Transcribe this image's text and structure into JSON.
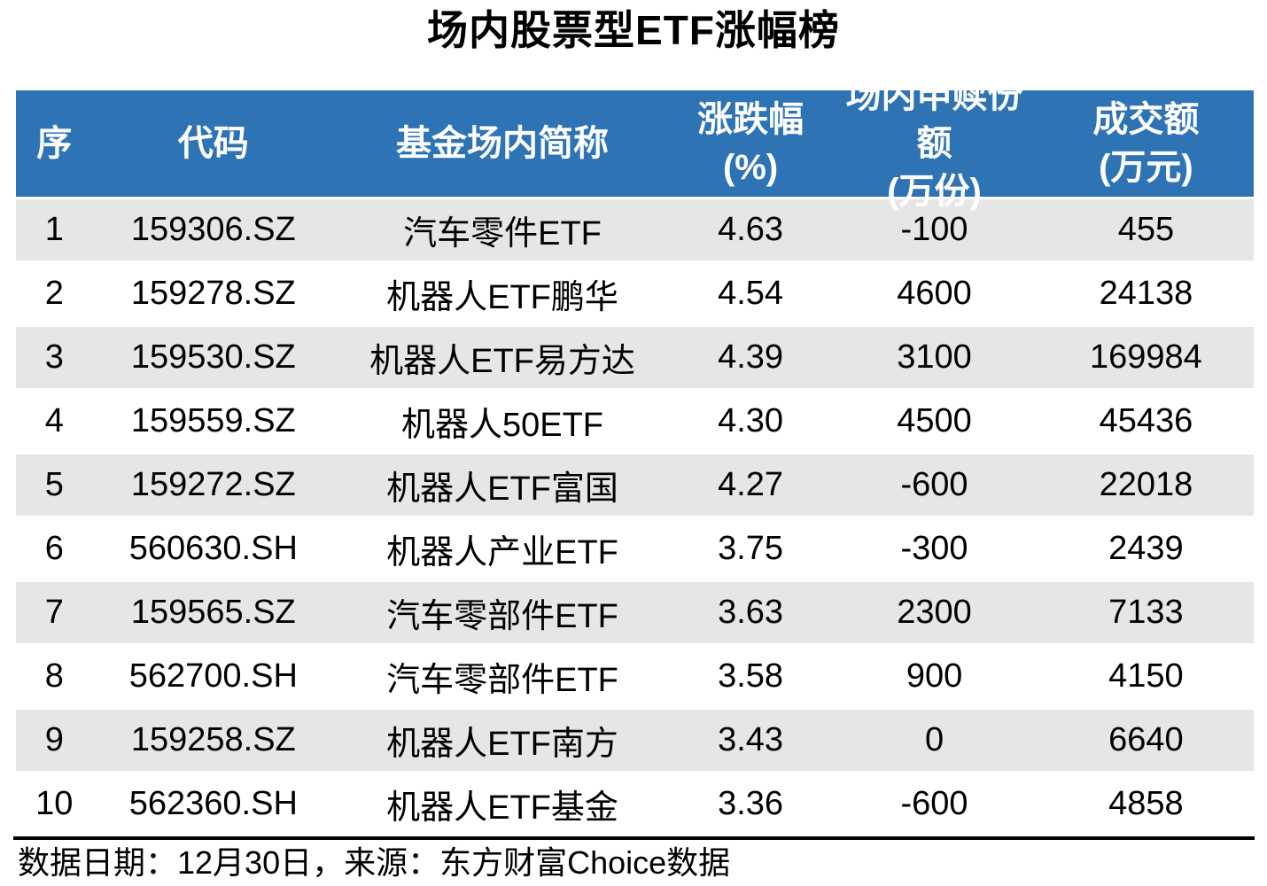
{
  "title": "场内股票型ETF涨幅榜",
  "footer": {
    "text": "数据日期：12月30日，来源：东方财富Choice数据"
  },
  "colors": {
    "header_bg": "#2E74B5",
    "header_text": "#FFFFFF",
    "row_band_bg": "#E6E6E6",
    "row_plain_bg": "#FFFFFF",
    "body_text": "#000000",
    "footer_rule": "#000000"
  },
  "table": {
    "columns": [
      {
        "key": "rank",
        "label": "序",
        "unit": ""
      },
      {
        "key": "code",
        "label": "代码",
        "unit": ""
      },
      {
        "key": "name",
        "label": "基金场内简称",
        "unit": ""
      },
      {
        "key": "change",
        "label": "涨跌幅",
        "unit": "(%)"
      },
      {
        "key": "flow",
        "label": "场内申赎份额",
        "unit": "(万份)"
      },
      {
        "key": "turnover",
        "label": "成交额",
        "unit": "(万元)"
      }
    ],
    "rows": [
      [
        "1",
        "159306.SZ",
        "汽车零件ETF",
        "4.63",
        "-100",
        "455"
      ],
      [
        "2",
        "159278.SZ",
        "机器人ETF鹏华",
        "4.54",
        "4600",
        "24138"
      ],
      [
        "3",
        "159530.SZ",
        "机器人ETF易方达",
        "4.39",
        "3100",
        "169984"
      ],
      [
        "4",
        "159559.SZ",
        "机器人50ETF",
        "4.30",
        "4500",
        "45436"
      ],
      [
        "5",
        "159272.SZ",
        "机器人ETF富国",
        "4.27",
        "-600",
        "22018"
      ],
      [
        "6",
        "560630.SH",
        "机器人产业ETF",
        "3.75",
        "-300",
        "2439"
      ],
      [
        "7",
        "159565.SZ",
        "汽车零部件ETF",
        "3.63",
        "2300",
        "7133"
      ],
      [
        "8",
        "562700.SH",
        "汽车零部件ETF",
        "3.58",
        "900",
        "4150"
      ],
      [
        "9",
        "159258.SZ",
        "机器人ETF南方",
        "3.43",
        "0",
        "6640"
      ],
      [
        "10",
        "562360.SH",
        "机器人ETF基金",
        "3.36",
        "-600",
        "4858"
      ]
    ]
  },
  "chart_data": {
    "type": "table",
    "title": "场内股票型ETF涨幅榜",
    "columns": [
      "序",
      "代码",
      "基金场内简称",
      "涨跌幅(%)",
      "场内申赎份额(万份)",
      "成交额(万元)"
    ],
    "rows": [
      [
        1,
        "159306.SZ",
        "汽车零件ETF",
        4.63,
        -100,
        455
      ],
      [
        2,
        "159278.SZ",
        "机器人ETF鹏华",
        4.54,
        4600,
        24138
      ],
      [
        3,
        "159530.SZ",
        "机器人ETF易方达",
        4.39,
        3100,
        169984
      ],
      [
        4,
        "159559.SZ",
        "机器人50ETF",
        4.3,
        4500,
        45436
      ],
      [
        5,
        "159272.SZ",
        "机器人ETF富国",
        4.27,
        -600,
        22018
      ],
      [
        6,
        "560630.SH",
        "机器人产业ETF",
        3.75,
        -300,
        2439
      ],
      [
        7,
        "159565.SZ",
        "汽车零部件ETF",
        3.63,
        2300,
        7133
      ],
      [
        8,
        "562700.SH",
        "汽车零部件ETF",
        3.58,
        900,
        4150
      ],
      [
        9,
        "159258.SZ",
        "机器人ETF南方",
        3.43,
        0,
        6640
      ],
      [
        10,
        "562360.SH",
        "机器人ETF基金",
        3.36,
        -600,
        4858
      ]
    ],
    "source_note": "数据日期：12月30日，来源：东方财富Choice数据",
    "layout": {
      "banded_rows": true,
      "grid": false,
      "header_bg": "#2E74B5"
    }
  }
}
